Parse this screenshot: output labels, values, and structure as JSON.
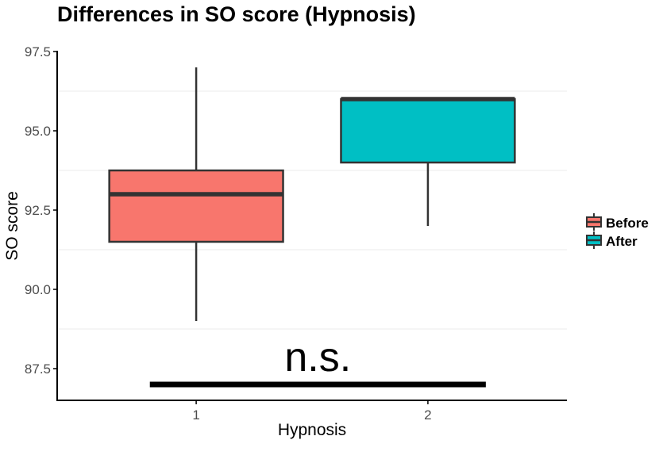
{
  "chart_data": {
    "type": "boxplot",
    "title": "Differences in SO score (Hypnosis)",
    "xlabel": "Hypnosis",
    "ylabel": "SO score",
    "categories": [
      "1",
      "2"
    ],
    "ylim": [
      86.5,
      97.5
    ],
    "yticks": [
      87.5,
      90.0,
      92.5,
      95.0,
      97.5
    ],
    "ytick_labels": [
      "87.5",
      "90.0",
      "92.5",
      "95.0",
      "97.5"
    ],
    "grid": "horizontal minor lines only",
    "legend": {
      "position": "right",
      "entries": [
        "Before",
        "After"
      ]
    },
    "series": [
      {
        "name": "Before",
        "category": "1",
        "color": "#F8766D",
        "min": 89.0,
        "q1": 91.5,
        "median": 93.0,
        "q3": 93.75,
        "max": 97.0
      },
      {
        "name": "After",
        "category": "2",
        "color": "#00BFC4",
        "min": 92.0,
        "q1": 94.0,
        "median": 96.0,
        "q3": 96.0,
        "max": 96.0
      }
    ],
    "annotation": {
      "text": "n.s.",
      "y": 87.0,
      "x_from": 0.8,
      "x_to": 2.25
    }
  }
}
